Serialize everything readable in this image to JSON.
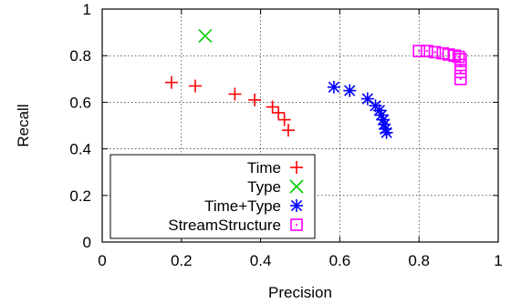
{
  "chart_data": {
    "type": "scatter",
    "title": "",
    "xlabel": "Precision",
    "ylabel": "Recall",
    "xlim": [
      0,
      1
    ],
    "ylim": [
      0,
      1
    ],
    "xticks": [
      "0",
      "0.2",
      "0.4",
      "0.6",
      "0.8",
      "1"
    ],
    "yticks": [
      "0",
      "0.2",
      "0.4",
      "0.6",
      "0.8",
      "1"
    ],
    "grid": true,
    "legend_position": "bottom-left",
    "series": [
      {
        "name": "Time",
        "marker": "plus",
        "color": "#ff0000",
        "points": [
          [
            0.175,
            0.685
          ],
          [
            0.235,
            0.67
          ],
          [
            0.335,
            0.635
          ],
          [
            0.385,
            0.61
          ],
          [
            0.43,
            0.58
          ],
          [
            0.445,
            0.555
          ],
          [
            0.46,
            0.525
          ],
          [
            0.47,
            0.48
          ]
        ]
      },
      {
        "name": "Type",
        "marker": "cross",
        "color": "#00cc00",
        "points": [
          [
            0.26,
            0.885
          ]
        ]
      },
      {
        "name": "Time+Type",
        "marker": "star",
        "color": "#0000ff",
        "points": [
          [
            0.585,
            0.665
          ],
          [
            0.625,
            0.65
          ],
          [
            0.67,
            0.615
          ],
          [
            0.69,
            0.585
          ],
          [
            0.7,
            0.565
          ],
          [
            0.705,
            0.545
          ],
          [
            0.71,
            0.525
          ],
          [
            0.712,
            0.505
          ],
          [
            0.715,
            0.485
          ],
          [
            0.718,
            0.47
          ]
        ]
      },
      {
        "name": "StreamStructure",
        "marker": "square-dot",
        "color": "#ff00ff",
        "points": [
          [
            0.8,
            0.82
          ],
          [
            0.82,
            0.82
          ],
          [
            0.84,
            0.815
          ],
          [
            0.86,
            0.81
          ],
          [
            0.875,
            0.805
          ],
          [
            0.89,
            0.8
          ],
          [
            0.9,
            0.795
          ],
          [
            0.905,
            0.785
          ],
          [
            0.905,
            0.76
          ],
          [
            0.905,
            0.73
          ],
          [
            0.905,
            0.7
          ]
        ]
      }
    ]
  }
}
